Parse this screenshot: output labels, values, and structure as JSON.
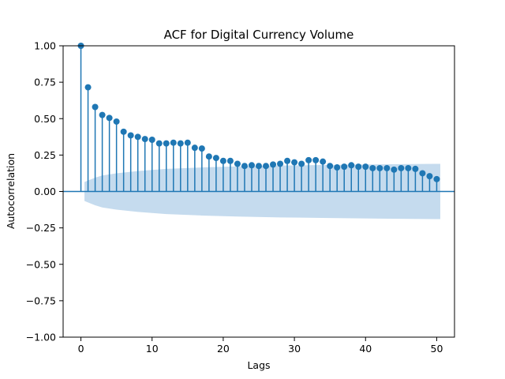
{
  "chart_data": {
    "type": "stem",
    "title": "ACF for Digital Currency Volume",
    "xlabel": "Lags",
    "ylabel": "Autocorrelation",
    "xlim": [
      -2.5,
      52.5
    ],
    "ylim": [
      -1.0,
      1.0
    ],
    "x_ticks": [
      0,
      10,
      20,
      30,
      40,
      50
    ],
    "x_tick_labels": [
      "0",
      "10",
      "20",
      "30",
      "40",
      "50"
    ],
    "y_ticks": [
      -1.0,
      -0.75,
      -0.5,
      -0.25,
      0.0,
      0.25,
      0.5,
      0.75,
      1.0
    ],
    "y_tick_labels": [
      "−1.00",
      "−0.75",
      "−0.50",
      "−0.25",
      "0.00",
      "0.25",
      "0.50",
      "0.75",
      "1.00"
    ],
    "lags": [
      0,
      1,
      2,
      3,
      4,
      5,
      6,
      7,
      8,
      9,
      10,
      11,
      12,
      13,
      14,
      15,
      16,
      17,
      18,
      19,
      20,
      21,
      22,
      23,
      24,
      25,
      26,
      27,
      28,
      29,
      30,
      31,
      32,
      33,
      34,
      35,
      36,
      37,
      38,
      39,
      40,
      41,
      42,
      43,
      44,
      45,
      46,
      47,
      48,
      49,
      50
    ],
    "values": [
      1.0,
      0.715,
      0.58,
      0.525,
      0.505,
      0.48,
      0.41,
      0.385,
      0.375,
      0.36,
      0.355,
      0.33,
      0.33,
      0.335,
      0.33,
      0.335,
      0.3,
      0.295,
      0.24,
      0.23,
      0.21,
      0.21,
      0.19,
      0.175,
      0.18,
      0.175,
      0.175,
      0.185,
      0.19,
      0.21,
      0.2,
      0.19,
      0.215,
      0.215,
      0.205,
      0.175,
      0.165,
      0.17,
      0.18,
      0.17,
      0.17,
      0.16,
      0.16,
      0.16,
      0.15,
      0.16,
      0.16,
      0.155,
      0.125,
      0.105,
      0.085
    ],
    "confidence_band": {
      "lags": [
        0.5,
        1,
        2,
        3,
        5,
        8,
        12,
        17,
        22,
        28,
        35,
        42,
        50,
        50.5
      ],
      "upper": [
        0.065,
        0.075,
        0.095,
        0.11,
        0.125,
        0.14,
        0.155,
        0.165,
        0.172,
        0.178,
        0.182,
        0.186,
        0.19,
        0.19
      ]
    },
    "colors": {
      "stem": "#1f77b4",
      "marker": "#1f77b4",
      "band": "#c5dbee",
      "zero_line": "#1f77b4",
      "axes": "#000000"
    },
    "grid": false
  }
}
